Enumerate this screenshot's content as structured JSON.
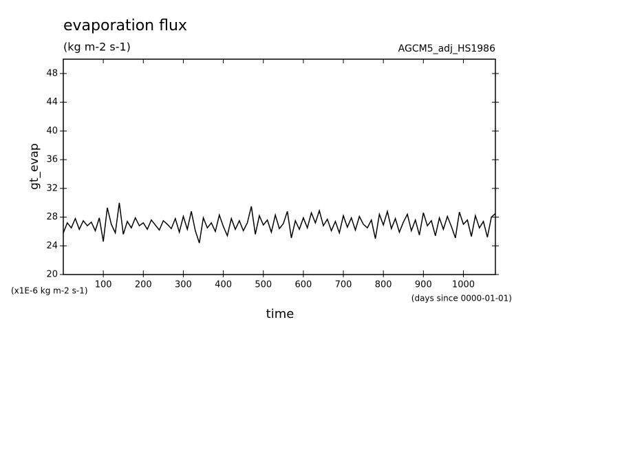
{
  "chart_data": {
    "type": "line",
    "title": "evaporation flux",
    "subtitle": "(kg m-2 s-1)",
    "annotation": "AGCM5_adj_HS1986",
    "y_label": "gt_evap",
    "y_unit": "(x1E-6 kg m-2 s-1)",
    "x_label": "time",
    "x_unit": "(days since 0000-01-01)",
    "x": [
      0,
      10,
      20,
      30,
      40,
      50,
      60,
      70,
      80,
      90,
      100,
      110,
      120,
      130,
      140,
      150,
      160,
      170,
      180,
      190,
      200,
      210,
      220,
      230,
      240,
      250,
      260,
      270,
      280,
      290,
      300,
      310,
      320,
      330,
      340,
      350,
      360,
      370,
      380,
      390,
      400,
      410,
      420,
      430,
      440,
      450,
      460,
      470,
      480,
      490,
      500,
      510,
      520,
      530,
      540,
      550,
      560,
      570,
      580,
      590,
      600,
      610,
      620,
      630,
      640,
      650,
      660,
      670,
      680,
      690,
      700,
      710,
      720,
      730,
      740,
      750,
      760,
      770,
      780,
      790,
      800,
      810,
      820,
      830,
      840,
      850,
      860,
      870,
      880,
      890,
      900,
      910,
      920,
      930,
      940,
      950,
      960,
      970,
      980,
      990,
      1000,
      1010,
      1020,
      1030,
      1040,
      1050,
      1060,
      1070,
      1080
    ],
    "series": [
      {
        "name": "gt_evap",
        "color": "#000000",
        "values": [
          25.8,
          27.2,
          26.5,
          27.8,
          26.3,
          27.5,
          26.8,
          27.3,
          26.1,
          27.9,
          24.6,
          29.3,
          27.0,
          25.8,
          30.0,
          25.6,
          27.4,
          26.5,
          27.9,
          26.8,
          27.2,
          26.3,
          27.6,
          26.9,
          26.2,
          27.5,
          27.0,
          26.4,
          27.8,
          25.9,
          28.1,
          26.3,
          28.8,
          26.1,
          24.4,
          27.9,
          26.5,
          27.2,
          26.0,
          28.3,
          26.7,
          25.4,
          27.8,
          26.3,
          27.5,
          26.1,
          27.2,
          29.5,
          25.6,
          28.2,
          26.9,
          27.6,
          25.9,
          28.3,
          26.4,
          27.1,
          28.8,
          25.1,
          27.5,
          26.3,
          27.9,
          26.5,
          28.6,
          27.2,
          28.9,
          26.8,
          27.7,
          26.1,
          27.4,
          25.8,
          28.2,
          26.6,
          27.9,
          26.2,
          28.1,
          27.0,
          26.5,
          27.6,
          25.0,
          28.4,
          26.9,
          28.8,
          26.4,
          27.8,
          25.9,
          27.3,
          28.4,
          26.1,
          27.6,
          25.5,
          28.6,
          26.8,
          27.5,
          25.4,
          27.9,
          26.3,
          28.1,
          26.7,
          25.1,
          28.7,
          27.0,
          27.6,
          25.3,
          28.2,
          26.5,
          27.4,
          25.2,
          28.0,
          28.5
        ]
      }
    ],
    "xlim": [
      0,
      1080
    ],
    "ylim": [
      20,
      50
    ],
    "xticks": [
      100,
      200,
      300,
      400,
      500,
      600,
      700,
      800,
      900,
      1000
    ],
    "yticks": [
      20,
      24,
      28,
      32,
      36,
      40,
      44,
      48
    ]
  }
}
